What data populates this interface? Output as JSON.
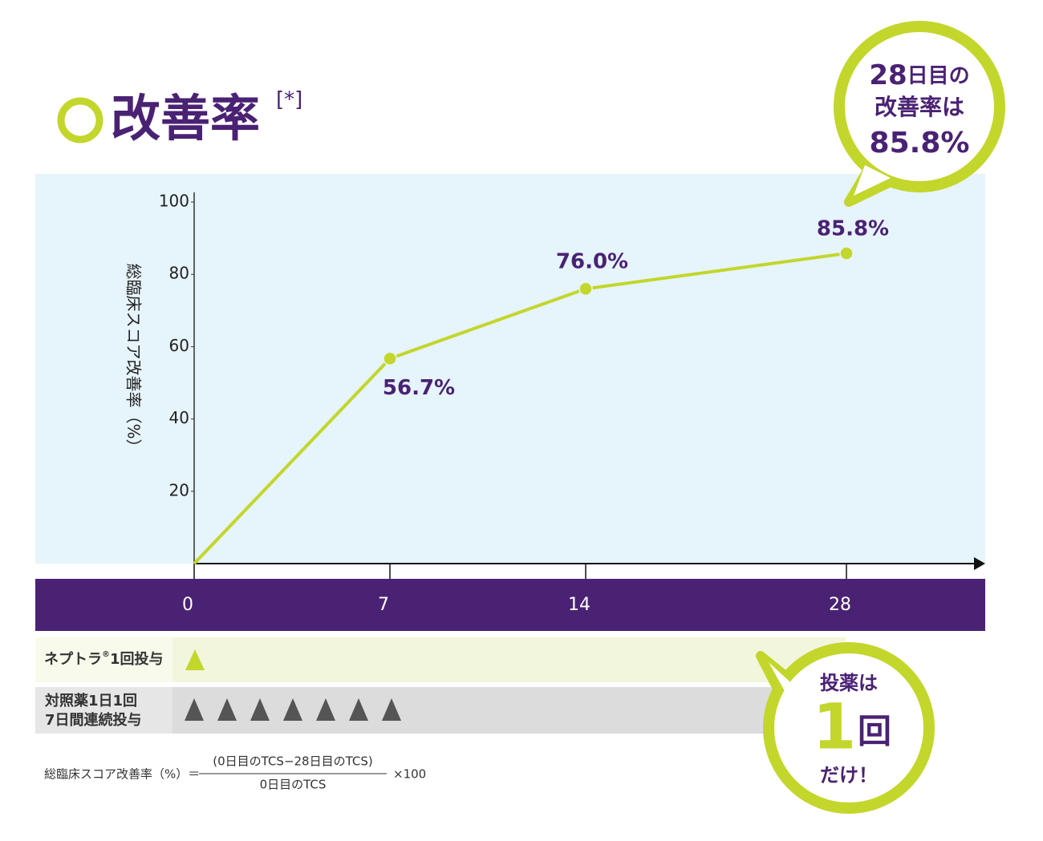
{
  "chart_data": {
    "type": "line",
    "title": "改善率",
    "title_note": "[*]",
    "y_label": "総臨床スコア改善率（%）",
    "categories": [
      "0",
      "7",
      "14",
      "28"
    ],
    "values": [
      0,
      56.7,
      76.0,
      85.8
    ],
    "value_labels": [
      null,
      "56.7%",
      "76.0%",
      "85.8%"
    ],
    "color": "#c3d62b",
    "ylim": [
      0,
      100
    ],
    "yticks": [
      20,
      40,
      60,
      80,
      100
    ]
  },
  "callout_top": {
    "line1_num": "28",
    "line1_text": "日目の",
    "line2": "改善率は",
    "line3": "85.8%"
  },
  "dosing": {
    "row1": {
      "label": "ネプトラ",
      "mark": "®",
      "label_rest": "1回投与"
    },
    "row2": {
      "label_line1": "対照薬1日1回",
      "label_line2": "7日間連続投与"
    }
  },
  "callout_bottom": {
    "line1": "投薬は",
    "num": "1",
    "unit": "回",
    "line3": "だけ！"
  },
  "formula": {
    "left": "総臨床スコア改善率（%）＝",
    "numerator": "(0日目のTCS−28日目のTCS)",
    "denominator": "0日目のTCS",
    "right": "×100"
  }
}
